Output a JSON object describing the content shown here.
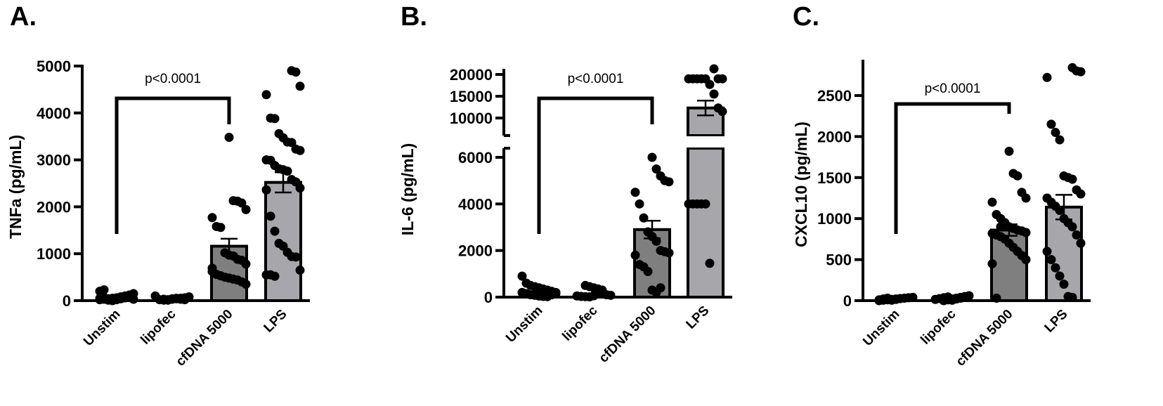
{
  "chart_data": [
    {
      "type": "bar",
      "panel": "A.",
      "ylabel": "TNFa (pg/mL)",
      "categories": [
        "Unstim",
        "lipofec",
        "cfDNA 5000",
        "LPS"
      ],
      "ylim": [
        0,
        5000
      ],
      "yticks": [
        0,
        1000,
        2000,
        3000,
        4000,
        5000
      ],
      "means": [
        50,
        30,
        1160,
        2520
      ],
      "sem": [
        15,
        8,
        160,
        215
      ],
      "points": [
        [
          20,
          30,
          40,
          50,
          60,
          80,
          100,
          120,
          150,
          200,
          230,
          10,
          0,
          20,
          40,
          60,
          90,
          30,
          50,
          70
        ],
        [
          10,
          20,
          30,
          40,
          50,
          60,
          80,
          100,
          20,
          30,
          10,
          40,
          50,
          30,
          20
        ],
        [
          3480,
          2130,
          2120,
          2080,
          1940,
          1770,
          1580,
          1560,
          1020,
          970,
          950,
          880,
          860,
          780,
          690,
          560,
          530,
          500,
          480,
          460,
          440,
          400,
          350,
          620
        ],
        [
          4900,
          4870,
          4570,
          4390,
          3890,
          3880,
          3560,
          3470,
          3380,
          3370,
          3230,
          3200,
          3000,
          2990,
          2880,
          2810,
          2790,
          2760,
          2580,
          2530,
          2400,
          2360,
          1800,
          1480,
          1220,
          1160,
          1030,
          940,
          930,
          650,
          550,
          550,
          520
        ]
      ],
      "annotation": {
        "text": "p<0.0001",
        "from": "Unstim",
        "to": "cfDNA 5000"
      }
    },
    {
      "type": "bar",
      "panel": "B.",
      "ylabel": "IL-6 (pg/mL)",
      "categories": [
        "Unstim",
        "lipofec",
        "cfDNA 5000",
        "LPS"
      ],
      "ylim": [
        0,
        21000
      ],
      "axis_break": [
        6000,
        9000
      ],
      "yticks": [
        0,
        2000,
        4000,
        6000,
        10000,
        15000,
        20000
      ],
      "means": [
        200,
        100,
        2900,
        12300
      ],
      "sem": [
        50,
        30,
        380,
        1700
      ],
      "points": [
        [
          900,
          600,
          500,
          450,
          400,
          350,
          300,
          250,
          200,
          200,
          150,
          100,
          80,
          50,
          30,
          20,
          100,
          150
        ],
        [
          500,
          450,
          400,
          350,
          300,
          100,
          80,
          50,
          30,
          20,
          10,
          60
        ],
        [
          6000,
          5500,
          5200,
          5000,
          4950,
          4500,
          4000,
          3400,
          2800,
          2600,
          2400,
          2000,
          1950,
          1900,
          1800,
          1400,
          1300,
          1100,
          300,
          200,
          400
        ],
        [
          21300,
          19000,
          19000,
          19000,
          19000,
          19000,
          19000,
          19000,
          17700,
          15500,
          12300,
          11500,
          4000,
          4000,
          4000,
          4000,
          4000,
          1450
        ]
      ],
      "annotation": {
        "text": "p<0.0001",
        "from": "Unstim",
        "to": "cfDNA 5000"
      }
    },
    {
      "type": "bar",
      "panel": "C.",
      "ylabel": "CXCL10 (pg/mL)",
      "categories": [
        "Unstim",
        "lipofec",
        "cfDNA 5000",
        "LPS"
      ],
      "ylim": [
        0,
        2800
      ],
      "yticks": [
        0,
        500,
        1000,
        1500,
        2000,
        2500
      ],
      "means": [
        20,
        30,
        860,
        1140
      ],
      "sem": [
        5,
        6,
        70,
        150
      ],
      "points": [
        [
          0,
          5,
          10,
          15,
          20,
          25,
          30,
          35,
          40,
          10,
          20,
          30,
          5,
          15,
          25
        ],
        [
          0,
          10,
          20,
          30,
          40,
          50,
          60,
          15,
          25,
          35,
          45,
          5,
          20,
          30,
          40
        ],
        [
          1820,
          1550,
          1520,
          1320,
          1250,
          1200,
          1050,
          1000,
          950,
          900,
          880,
          860,
          850,
          830,
          820,
          800,
          780,
          750,
          700,
          650,
          600,
          550,
          500,
          450,
          30,
          900
        ],
        [
          2840,
          2800,
          2790,
          2720,
          2150,
          2050,
          1960,
          1520,
          1500,
          1480,
          1350,
          1300,
          1250,
          1200,
          1150,
          1100,
          1000,
          950,
          900,
          800,
          700,
          600,
          500,
          400,
          300,
          200,
          50,
          40
        ]
      ],
      "annotation": {
        "text": "p<0.0001",
        "from": "Unstim",
        "to": "cfDNA 5000"
      }
    }
  ],
  "colors": {
    "bar_light": "#ffffff",
    "bar_dark": "#7f7f7f",
    "bar_lps": "#a7a7ab",
    "ink": "#000000"
  }
}
